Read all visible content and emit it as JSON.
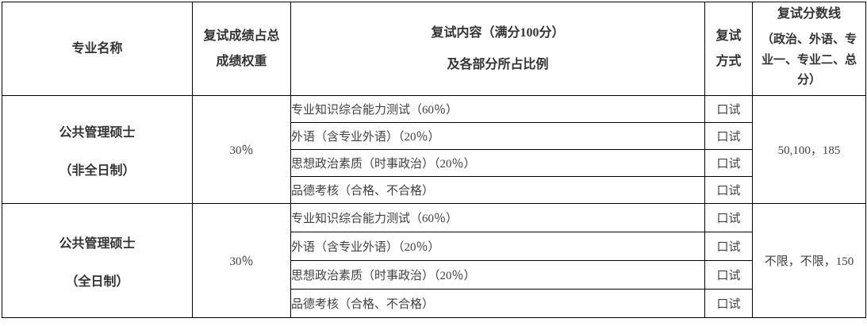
{
  "colors": {
    "border": "#000000",
    "header_text": "#333333",
    "body_text": "#404040",
    "background": "#ffffff"
  },
  "table": {
    "headers": {
      "major": "专业名称",
      "weight_line1": "复试成绩占总",
      "weight_line2": "成绩权重",
      "content_line1": "复试内容（满分100分）",
      "content_line2": "及各部分所占比例",
      "method_line1": "复试",
      "method_line2": "方式",
      "cutoff_title": "复试分数线",
      "cutoff_subtitle": "（政治、外语、专业一、专业二、总分）"
    },
    "groups": [
      {
        "major_line1": "公共管理硕士",
        "major_line2": "（非全日制）",
        "weight": "30％",
        "cutoff": "50,100，185",
        "items": [
          {
            "content": "专业知识综合能力测试（60％）",
            "method": "口试"
          },
          {
            "content": "外语（含专业外语）（20％）",
            "method": "口试"
          },
          {
            "content": "思想政治素质（时事政治）（20％）",
            "method": "口试"
          },
          {
            "content": "品德考核（合格、不合格）",
            "method": "口试"
          }
        ]
      },
      {
        "major_line1": "公共管理硕士",
        "major_line2": "（全日制）",
        "weight": "30％",
        "cutoff": "不限，不限，150",
        "items": [
          {
            "content": "专业知识综合能力测试（60％）",
            "method": "口试"
          },
          {
            "content": "外语（含专业外语）（20％）",
            "method": "口试"
          },
          {
            "content": "思想政治素质（时事政治）（20％）",
            "method": "口试"
          },
          {
            "content": "品德考核（合格、不合格）",
            "method": "口试"
          }
        ]
      }
    ]
  }
}
